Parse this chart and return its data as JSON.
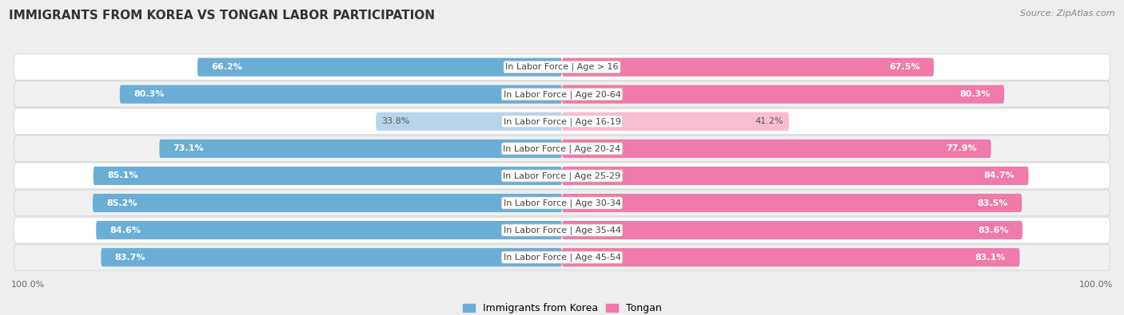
{
  "title": "IMMIGRANTS FROM KOREA VS TONGAN LABOR PARTICIPATION",
  "source": "Source: ZipAtlas.com",
  "categories": [
    "In Labor Force | Age > 16",
    "In Labor Force | Age 20-64",
    "In Labor Force | Age 16-19",
    "In Labor Force | Age 20-24",
    "In Labor Force | Age 25-29",
    "In Labor Force | Age 30-34",
    "In Labor Force | Age 35-44",
    "In Labor Force | Age 45-54"
  ],
  "korea_values": [
    66.2,
    80.3,
    33.8,
    73.1,
    85.1,
    85.2,
    84.6,
    83.7
  ],
  "tongan_values": [
    67.5,
    80.3,
    41.2,
    77.9,
    84.7,
    83.5,
    83.6,
    83.1
  ],
  "korea_color_full": "#6aaed6",
  "korea_color_light": "#b8d4ea",
  "tongan_color_full": "#f07aaa",
  "tongan_color_light": "#f9bcd0",
  "bar_height": 0.68,
  "bg_color": "#eeeeee",
  "row_bg_colors": [
    "#ffffff",
    "#f0f0f0"
  ],
  "label_fontsize": 8.0,
  "cat_fontsize": 8.0,
  "title_fontsize": 11,
  "full_threshold": 50,
  "max_val": 100.0,
  "legend_labels": [
    "Immigrants from Korea",
    "Tongan"
  ]
}
